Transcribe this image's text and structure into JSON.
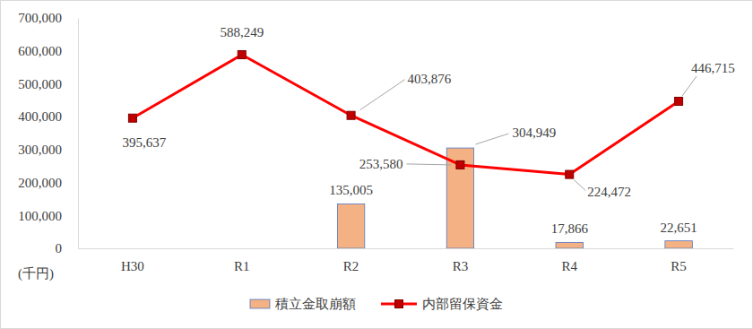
{
  "chart_data": {
    "type": "combo",
    "ylabel": "(千円)",
    "categories": [
      "H30",
      "R1",
      "R2",
      "R3",
      "R4",
      "R5"
    ],
    "ylim": [
      0,
      700000
    ],
    "yticks": [
      0,
      {
        "value": 100000,
        "label": "100,000"
      },
      {
        "value": 200000,
        "label": "200,000"
      },
      {
        "value": 300000,
        "label": "300,000"
      },
      {
        "value": 400000,
        "label": "400,000"
      },
      {
        "value": 500000,
        "label": "500,000"
      },
      {
        "value": 600000,
        "label": "600,000"
      },
      {
        "value": 700000,
        "label": "700,000"
      }
    ],
    "grid": false,
    "legend": "bottom",
    "data_labels": true,
    "series": [
      {
        "name": "積立金取崩額",
        "type": "bar",
        "color": "#f4b183",
        "values": [
          null,
          null,
          135005,
          304949,
          17866,
          22651
        ],
        "value_labels": [
          null,
          null,
          "135,005",
          "304,949",
          "17,866",
          "22,651"
        ]
      },
      {
        "name": "内部留保資金",
        "type": "line",
        "color": "#ff0000",
        "marker": "square",
        "values": [
          395637,
          588249,
          403876,
          253580,
          224472,
          446715
        ],
        "value_labels": [
          "395,637",
          "588,249",
          "403,876",
          "253,580",
          "224,472",
          "446,715"
        ]
      }
    ]
  }
}
